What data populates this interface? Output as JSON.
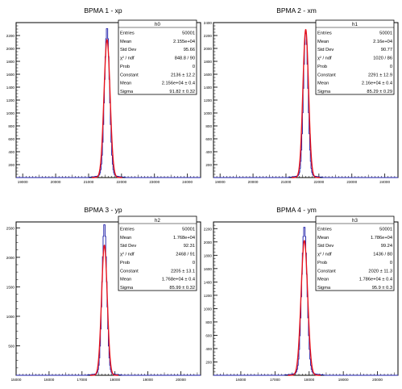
{
  "chart_data": [
    {
      "type": "histogram",
      "title": "BPMA 1 - xp",
      "xlim": [
        18800,
        24400
      ],
      "ylim": [
        0,
        2400
      ],
      "xticks": [
        19000,
        20000,
        21000,
        22000,
        23000,
        24000
      ],
      "yticks": [
        200,
        400,
        600,
        800,
        1000,
        1200,
        1400,
        1600,
        1800,
        2000,
        2200
      ],
      "hist_peak": 2290,
      "stats": {
        "name": "h0",
        "rows": [
          {
            "label": "Entries",
            "value": "50001"
          },
          {
            "label": "Mean",
            "value": "2.155e+04"
          },
          {
            "label": "Std Dev",
            "value": "95.66"
          },
          {
            "label": "χ² / ndf",
            "value": "848.8 / 90"
          },
          {
            "label": "Prob",
            "value": "0"
          },
          {
            "label": "Constant",
            "value": "2136 ± 12.2"
          },
          {
            "label": "Mean",
            "value": "2.156e+04 ± 0.4"
          },
          {
            "label": "Sigma",
            "value": "91.82 ± 0.32"
          }
        ]
      },
      "fit": {
        "constant": 2136,
        "mean": 21560,
        "sigma": 91.82
      }
    },
    {
      "type": "histogram",
      "title": "BPMA 2 - xm",
      "xlim": [
        18800,
        24400
      ],
      "ylim": [
        0,
        2400
      ],
      "xticks": [
        19000,
        20000,
        21000,
        22000,
        23000,
        24000
      ],
      "yticks": [
        200,
        400,
        600,
        800,
        1000,
        1200,
        1400,
        1600,
        1800,
        2000,
        2200,
        2400
      ],
      "hist_peak": 2220,
      "stats": {
        "name": "h1",
        "rows": [
          {
            "label": "Entries",
            "value": "50001"
          },
          {
            "label": "Mean",
            "value": "2.16e+04"
          },
          {
            "label": "Std Dev",
            "value": "90.77"
          },
          {
            "label": "χ² / ndf",
            "value": "1020 / 86"
          },
          {
            "label": "Prob",
            "value": "0"
          },
          {
            "label": "Constant",
            "value": "2291 ± 12.9"
          },
          {
            "label": "Mean",
            "value": "2.16e+04 ± 0.4"
          },
          {
            "label": "Sigma",
            "value": "85.29 ± 0.29"
          }
        ]
      },
      "fit": {
        "constant": 2291,
        "mean": 21600,
        "sigma": 85.29
      }
    },
    {
      "type": "histogram",
      "title": "BPMA 3 - yp",
      "xlim": [
        15000,
        20600
      ],
      "ylim": [
        0,
        2600
      ],
      "xticks": [
        15000,
        16000,
        17000,
        18000,
        19000,
        20000
      ],
      "yticks": [
        500,
        1000,
        1500,
        2000,
        2500
      ],
      "hist_peak": 2540,
      "stats": {
        "name": "h2",
        "rows": [
          {
            "label": "Entries",
            "value": "50001"
          },
          {
            "label": "Mean",
            "value": "1.768e+04"
          },
          {
            "label": "Std Dev",
            "value": "92.31"
          },
          {
            "label": "χ² / ndf",
            "value": "2468 / 91"
          },
          {
            "label": "Prob",
            "value": "0"
          },
          {
            "label": "Constant",
            "value": "2205 ± 13.1"
          },
          {
            "label": "Mean",
            "value": "1.768e+04 ± 0.4"
          },
          {
            "label": "Sigma",
            "value": "85.99 ± 0.32"
          }
        ]
      },
      "fit": {
        "constant": 2205,
        "mean": 17680,
        "sigma": 85.99
      }
    },
    {
      "type": "histogram",
      "title": "BPMA 4 - ym",
      "xlim": [
        15200,
        20600
      ],
      "ylim": [
        0,
        2300
      ],
      "xticks": [
        16000,
        17000,
        18000,
        19000,
        20000
      ],
      "yticks": [
        200,
        400,
        600,
        800,
        1000,
        1200,
        1400,
        1600,
        1800,
        2000,
        2200
      ],
      "hist_peak": 2200,
      "stats": {
        "name": "h3",
        "rows": [
          {
            "label": "Entries",
            "value": "50001"
          },
          {
            "label": "Mean",
            "value": "1.786e+04"
          },
          {
            "label": "Std Dev",
            "value": "99.24"
          },
          {
            "label": "χ² / ndf",
            "value": "1436 / 80"
          },
          {
            "label": "Prob",
            "value": "0"
          },
          {
            "label": "Constant",
            "value": "2020 ± 11.3"
          },
          {
            "label": "Mean",
            "value": "1.786e+04 ± 0.4"
          },
          {
            "label": "Sigma",
            "value": "95.9 ± 0.3"
          }
        ]
      },
      "fit": {
        "constant": 2020,
        "mean": 17860,
        "sigma": 95.9
      }
    }
  ],
  "colors": {
    "histogram": "#1a1aa8",
    "fit": "#e8141e",
    "axis": "#000000",
    "background": "#ffffff"
  }
}
